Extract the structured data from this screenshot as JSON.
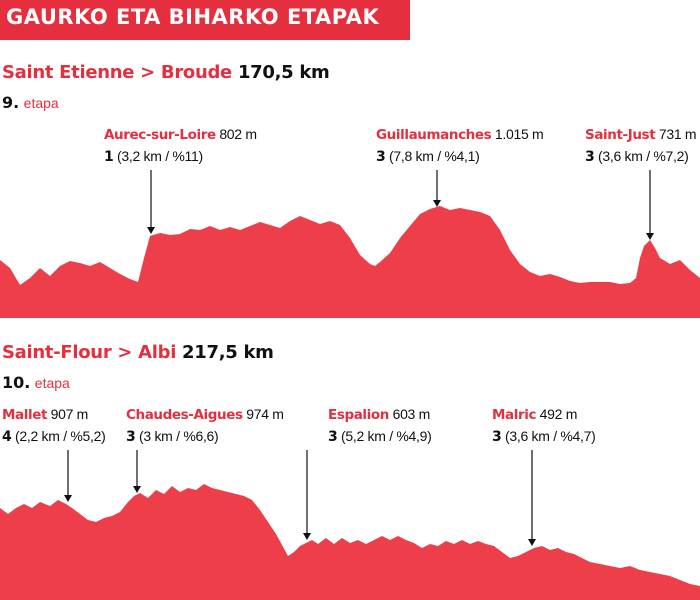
{
  "header": {
    "title": "GAURKO ETA BIHARKO ETAPAK"
  },
  "colors": {
    "accent": "#e52f3f",
    "profile_fill": "#ee3e4a",
    "text": "#111111",
    "background": "#ffffff"
  },
  "stages": [
    {
      "route": "Saint Etienne > Broude",
      "distance": "170,5 km",
      "number": "9.",
      "label": "etapa",
      "climbs": [
        {
          "name": "Aurec-sur-Loire",
          "elevation": "802 m",
          "category": "1",
          "details": "(3,2 km / %11)"
        },
        {
          "name": "Guillaumanches",
          "elevation": "1.015 m",
          "category": "3",
          "details": "(7,8 km / %4,1)"
        },
        {
          "name": "Saint-Just",
          "elevation": "731 m",
          "category": "3",
          "details": "(3,6 km / %7,2)"
        }
      ]
    },
    {
      "route": "Saint-Flour > Albi",
      "distance": "217,5 km",
      "number": "10.",
      "label": "etapa",
      "climbs": [
        {
          "name": "Mallet",
          "elevation": "907 m",
          "category": "4",
          "details": "(2,2 km / %5,2)"
        },
        {
          "name": "Chaudes-Aigues",
          "elevation": "974 m",
          "category": "3",
          "details": "(3 km / %6,6)"
        },
        {
          "name": "Espalion",
          "elevation": "603 m",
          "category": "3",
          "details": "(5,2 km / %4,9)"
        },
        {
          "name": "Malric",
          "elevation": "492 m",
          "category": "3",
          "details": "(3,6 km / %4,7)"
        }
      ]
    }
  ]
}
